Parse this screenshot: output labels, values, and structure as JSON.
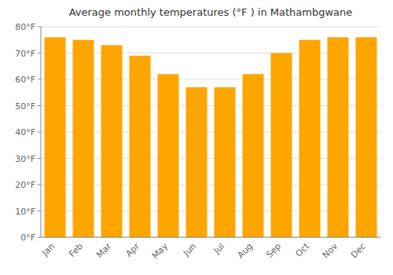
{
  "chart_data": {
    "type": "bar",
    "title": "Average monthly temperatures (°F ) in Mathambgwane",
    "categories": [
      "Jan",
      "Feb",
      "Mar",
      "Apr",
      "May",
      "Jun",
      "Jul",
      "Aug",
      "Sep",
      "Oct",
      "Nov",
      "Dec"
    ],
    "values": [
      76,
      75,
      73,
      69,
      62,
      57,
      57,
      62,
      70,
      75,
      76,
      76
    ],
    "color": "#FFA500",
    "ylim": [
      0,
      80
    ],
    "yticks": [
      {
        "value": 0,
        "label": "0°F"
      },
      {
        "value": 10,
        "label": "10°F"
      },
      {
        "value": 20,
        "label": "20°F"
      },
      {
        "value": 30,
        "label": "30°F"
      },
      {
        "value": 40,
        "label": "40°F"
      },
      {
        "value": 50,
        "label": "50°F"
      },
      {
        "value": 60,
        "label": "60°F"
      },
      {
        "value": 70,
        "label": "70°F"
      },
      {
        "value": 80,
        "label": "80°F"
      }
    ],
    "grid": true
  }
}
